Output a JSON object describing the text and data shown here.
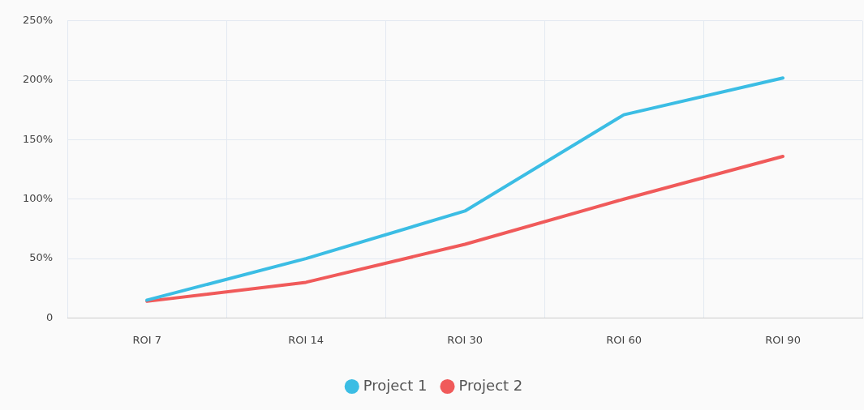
{
  "chart_data": {
    "type": "line",
    "categories": [
      "ROI 7",
      "ROI 14",
      "ROI 30",
      "ROI 60",
      "ROI 90"
    ],
    "series": [
      {
        "name": "Project 1",
        "color": "#3bbde4",
        "values": [
          15,
          50,
          90,
          171,
          202
        ]
      },
      {
        "name": "Project 2",
        "color": "#f05a5a",
        "values": [
          14,
          30,
          62,
          100,
          136
        ]
      }
    ],
    "ylim": [
      0,
      250
    ],
    "yticks": [
      {
        "value": 0,
        "label": "0"
      },
      {
        "value": 50,
        "label": "50%"
      },
      {
        "value": 100,
        "label": "100%"
      },
      {
        "value": 150,
        "label": "150%"
      },
      {
        "value": 200,
        "label": "200%"
      },
      {
        "value": 250,
        "label": "250%"
      }
    ],
    "grid": true,
    "legend": "bottom",
    "marker": "none",
    "line_style": "solid"
  }
}
